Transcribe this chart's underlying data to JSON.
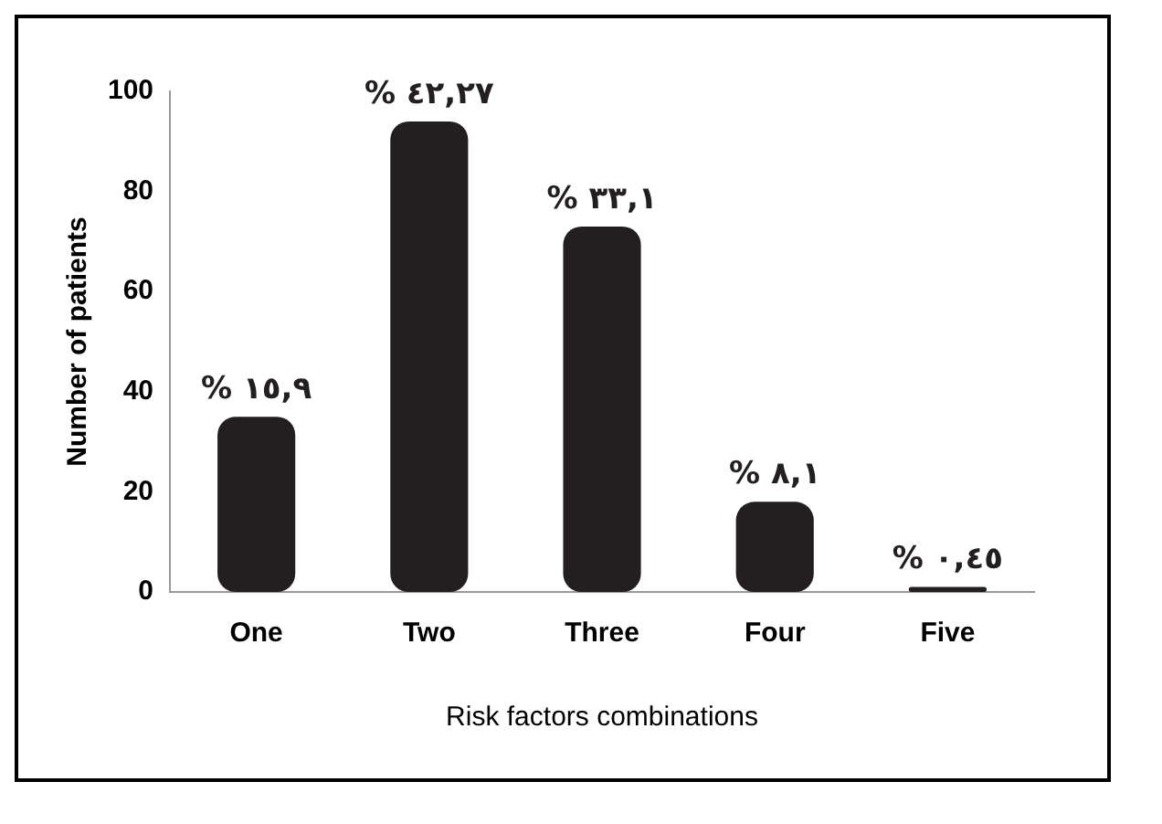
{
  "chart_data": {
    "type": "bar",
    "xlabel": "Risk factors combinations",
    "ylabel": "Number of patients",
    "categories": [
      "One",
      "Two",
      "Three",
      "Four",
      "Five"
    ],
    "values": [
      35,
      94,
      73,
      18,
      1
    ],
    "color": "#231f20",
    "annotations": [
      {
        "text": "% ١٥,٩",
        "x": "One",
        "y": 35
      },
      {
        "text": "% ٤٢,٢٧",
        "x": "Two",
        "y": 94
      },
      {
        "text": "% ٣٣,١",
        "x": "Three",
        "y": 73
      },
      {
        "text": "% ٨,١",
        "x": "Four",
        "y": 18
      },
      {
        "text": "% ٠,٤٥",
        "x": "Five",
        "y": 1
      }
    ],
    "ylim": [
      0,
      100
    ],
    "yticks": [
      0,
      20,
      40,
      60,
      80,
      100
    ],
    "grid": false,
    "legend": false
  }
}
